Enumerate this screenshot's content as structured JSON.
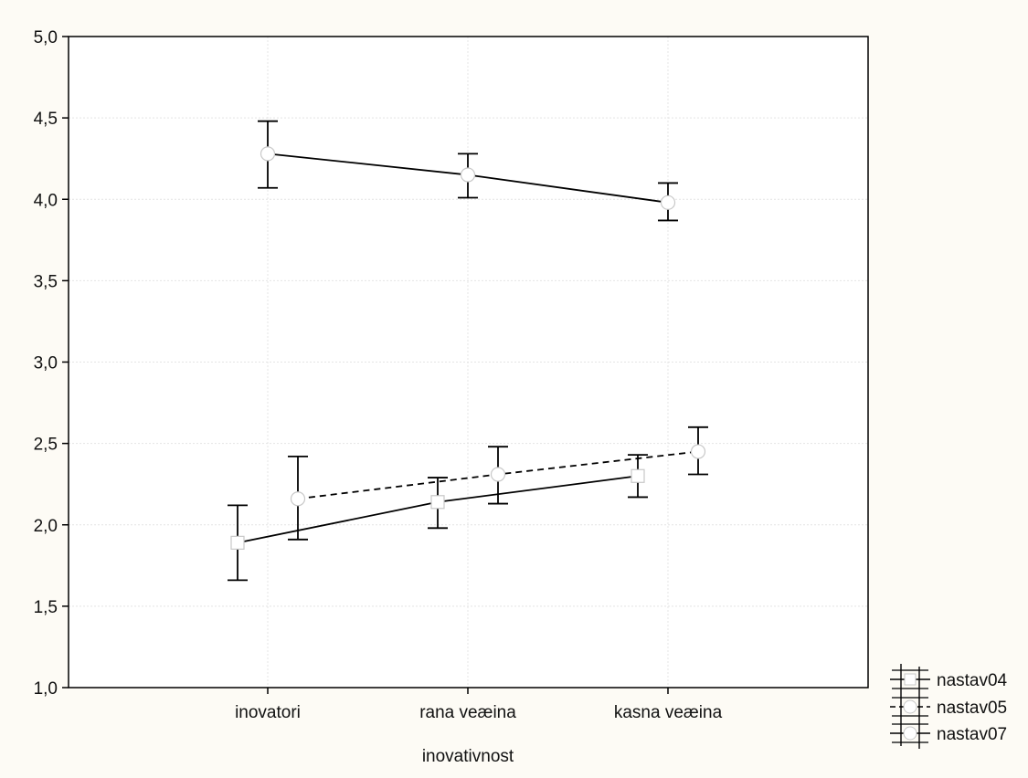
{
  "chart_data": {
    "type": "line",
    "title": "",
    "xlabel": "inovativnost",
    "ylabel": "",
    "categories": [
      "inovatori",
      "rana veæina",
      "kasna veæina"
    ],
    "ylim": [
      1.0,
      5.0
    ],
    "yticks": [
      "1,0",
      "1,5",
      "2,0",
      "2,5",
      "3,0",
      "3,5",
      "4,0",
      "4,5",
      "5,0"
    ],
    "grid": true,
    "legend_position": "bottom-right outside",
    "series": [
      {
        "name": "nastav04",
        "marker": "square",
        "line_style": "solid",
        "values": [
          1.89,
          2.14,
          2.3
        ],
        "error_low": [
          1.66,
          1.98,
          2.17
        ],
        "error_high": [
          2.12,
          2.29,
          2.43
        ]
      },
      {
        "name": "nastav05",
        "marker": "circle",
        "line_style": "dashed",
        "values": [
          2.16,
          2.31,
          2.45
        ],
        "error_low": [
          1.91,
          2.13,
          2.31
        ],
        "error_high": [
          2.42,
          2.48,
          2.6
        ]
      },
      {
        "name": "nastav07",
        "marker": "circle",
        "line_style": "solid",
        "values": [
          4.28,
          4.15,
          3.98
        ],
        "error_low": [
          4.07,
          4.01,
          3.87
        ],
        "error_high": [
          4.48,
          4.28,
          4.1
        ]
      }
    ],
    "colors": {
      "line": "#000000",
      "marker_fill": "#ffffff",
      "marker_stroke": "#c8c8c8",
      "grid": "#e4e4e4",
      "background": "#fdfbf5"
    }
  }
}
